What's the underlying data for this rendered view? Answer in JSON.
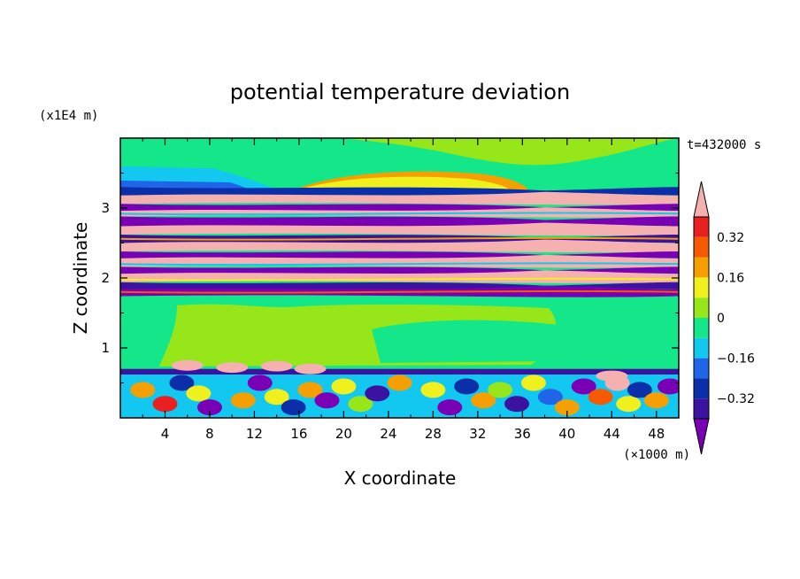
{
  "chart_data": {
    "type": "heatmap",
    "title": "potential temperature deviation",
    "xlabel": "X coordinate",
    "ylabel": "Z coordinate",
    "x_unit": "(×1000 m)",
    "y_unit": "(x1E4 m)",
    "time_label": "t=432000 s",
    "xlim": [
      0,
      50
    ],
    "ylim": [
      0,
      4
    ],
    "x_ticks": [
      "4",
      "8",
      "12",
      "16",
      "20",
      "24",
      "28",
      "32",
      "36",
      "40",
      "44",
      "48"
    ],
    "y_ticks": [
      "1",
      "2",
      "3"
    ],
    "colorbar": {
      "levels": [
        -0.4,
        -0.32,
        -0.24,
        -0.16,
        -0.08,
        0,
        0.08,
        0.16,
        0.24,
        0.32,
        0.4
      ],
      "labels": [
        "0.32",
        "0.16",
        "0",
        "−0.16",
        "−0.32"
      ],
      "colors": [
        "#7a00b5",
        "#3c12a0",
        "#0a2fa8",
        "#2064e8",
        "#12c8f0",
        "#14e68a",
        "#96e61a",
        "#f0f01e",
        "#f5a000",
        "#f55a00",
        "#e82020",
        "#f5b0b0"
      ]
    },
    "layers": [
      {
        "z_min": 3.3,
        "z_max": 4.0,
        "pattern": "smooth, near 0 to slightly negative"
      },
      {
        "z_min": 1.7,
        "z_max": 3.3,
        "pattern": "strong alternating positive and negative horizontal bands"
      },
      {
        "z_min": 0.7,
        "z_max": 1.7,
        "pattern": "near zero, weak positive patches"
      },
      {
        "z_min": 0.0,
        "z_max": 0.7,
        "pattern": "turbulent mixed positive and negative eddies"
      }
    ]
  }
}
